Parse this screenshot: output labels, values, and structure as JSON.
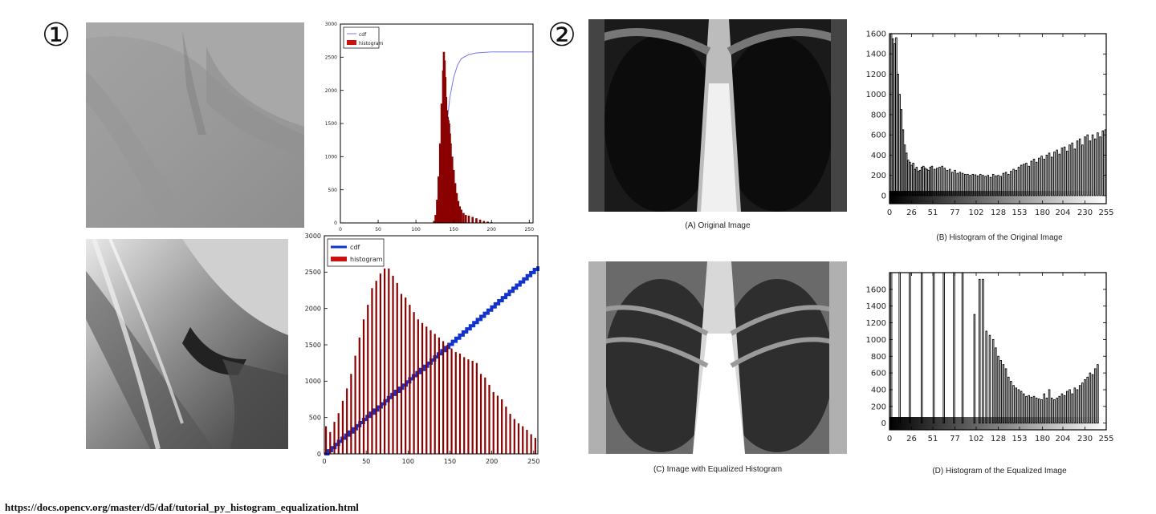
{
  "markers": {
    "first": "①",
    "second": "②"
  },
  "captions": {
    "a": "(A) Original Image",
    "b": "(B) Histogram of the Original Image",
    "c": "(C) Image with Equalized Histogram",
    "d": "(D) Histogram of the Equalized Image"
  },
  "source_url": "https://docs.opencv.org/master/d5/daf/tutorial_py_histogram_equalization.html",
  "chart_data": [
    {
      "id": "landscape-original-histogram",
      "type": "bar",
      "xlim": [
        0,
        255
      ],
      "ylim": [
        0,
        3000
      ],
      "yticks": [
        0,
        500,
        1000,
        1500,
        2000,
        2500,
        3000
      ],
      "xticks": [
        0,
        50,
        100,
        150,
        200,
        250
      ],
      "legend_position": "top-left",
      "grid": false,
      "series": [
        {
          "name": "cdf",
          "kind": "line",
          "color": "#7777ee",
          "x": [
            128,
            132,
            135,
            138,
            141,
            145,
            150,
            155,
            160,
            170,
            180,
            200,
            220,
            255
          ],
          "values": [
            0,
            200,
            600,
            1100,
            1500,
            1900,
            2200,
            2380,
            2480,
            2540,
            2565,
            2580,
            2580,
            2580
          ]
        },
        {
          "name": "histogram",
          "kind": "bar",
          "color": "#8b0000",
          "x": [
            124,
            126,
            128,
            130,
            132,
            134,
            136,
            137,
            138,
            139,
            140,
            141,
            142,
            143,
            144,
            145,
            146,
            148,
            150,
            152,
            154,
            156,
            158,
            160,
            163,
            166,
            170,
            175,
            180,
            185,
            190,
            195,
            200
          ],
          "values": [
            30,
            120,
            350,
            700,
            1200,
            1800,
            2300,
            2580,
            2450,
            2200,
            1900,
            1700,
            1600,
            1550,
            1500,
            1350,
            1200,
            1000,
            800,
            600,
            450,
            330,
            250,
            200,
            150,
            120,
            110,
            90,
            70,
            50,
            30,
            20,
            10
          ]
        }
      ]
    },
    {
      "id": "landscape-equalized-histogram",
      "type": "bar",
      "xlim": [
        0,
        255
      ],
      "ylim": [
        0,
        3000
      ],
      "yticks": [
        0,
        500,
        1000,
        1500,
        2000,
        2500,
        3000
      ],
      "xticks": [
        0,
        50,
        100,
        150,
        200,
        250
      ],
      "legend_position": "top-left",
      "grid": false,
      "series": [
        {
          "name": "cdf",
          "kind": "line",
          "color": "#1133cc",
          "x": [
            0,
            255
          ],
          "values": [
            0,
            2580
          ]
        },
        {
          "name": "histogram",
          "kind": "bar",
          "color": "#8b0000",
          "x": [
            2,
            7,
            12,
            17,
            22,
            27,
            32,
            37,
            42,
            47,
            52,
            57,
            62,
            67,
            72,
            77,
            82,
            87,
            92,
            97,
            102,
            107,
            112,
            117,
            122,
            127,
            132,
            137,
            142,
            147,
            152,
            157,
            162,
            167,
            172,
            177,
            182,
            187,
            192,
            197,
            202,
            207,
            212,
            217,
            222,
            227,
            232,
            237,
            242,
            247,
            252
          ],
          "values": [
            380,
            300,
            440,
            560,
            730,
            900,
            1100,
            1350,
            1600,
            1850,
            2050,
            2280,
            2380,
            2480,
            2550,
            2550,
            2450,
            2350,
            2200,
            2150,
            2050,
            1950,
            1850,
            1800,
            1750,
            1700,
            1650,
            1600,
            1550,
            1500,
            1450,
            1400,
            1380,
            1330,
            1300,
            1280,
            1250,
            1100,
            1050,
            950,
            850,
            800,
            750,
            650,
            550,
            480,
            420,
            380,
            330,
            270,
            220
          ]
        }
      ]
    },
    {
      "id": "xray-original-histogram",
      "type": "bar",
      "xlim": [
        0,
        255
      ],
      "ylim": [
        -80,
        1600
      ],
      "yticks": [
        0,
        200,
        400,
        600,
        800,
        1000,
        1200,
        1400,
        1600
      ],
      "xticks": [
        0,
        26,
        51,
        77,
        102,
        128,
        153,
        180,
        204,
        230,
        255
      ],
      "colorbar": true,
      "grid": false,
      "series": [
        {
          "name": "histogram",
          "kind": "bar",
          "color": "#000000",
          "x": [
            2,
            4,
            6,
            8,
            10,
            12,
            14,
            16,
            18,
            20,
            22,
            24,
            26,
            28,
            30,
            32,
            34,
            36,
            38,
            40,
            42,
            44,
            46,
            48,
            50,
            53,
            56,
            59,
            62,
            65,
            68,
            71,
            74,
            77,
            80,
            83,
            86,
            89,
            92,
            95,
            98,
            101,
            104,
            107,
            110,
            113,
            116,
            119,
            122,
            125,
            128,
            131,
            134,
            137,
            140,
            143,
            146,
            149,
            152,
            155,
            158,
            161,
            164,
            167,
            170,
            173,
            176,
            179,
            182,
            185,
            188,
            191,
            194,
            197,
            200,
            203,
            206,
            209,
            212,
            215,
            218,
            221,
            224,
            227,
            230,
            233,
            236,
            239,
            242,
            245,
            248,
            251,
            254
          ],
          "values": [
            1600,
            1550,
            1500,
            1560,
            1200,
            1000,
            850,
            650,
            500,
            420,
            350,
            330,
            300,
            320,
            260,
            280,
            240,
            250,
            280,
            290,
            270,
            260,
            250,
            280,
            290,
            260,
            270,
            280,
            290,
            270,
            250,
            260,
            230,
            250,
            220,
            230,
            220,
            210,
            210,
            200,
            210,
            205,
            195,
            210,
            200,
            190,
            200,
            180,
            210,
            195,
            200,
            190,
            220,
            230,
            210,
            240,
            260,
            250,
            280,
            300,
            310,
            320,
            290,
            340,
            360,
            330,
            370,
            390,
            360,
            400,
            420,
            380,
            430,
            450,
            410,
            470,
            480,
            440,
            500,
            520,
            460,
            540,
            560,
            500,
            580,
            600,
            540,
            600,
            560,
            620,
            580,
            640,
            650
          ]
        }
      ]
    },
    {
      "id": "xray-equalized-histogram",
      "type": "bar",
      "xlim": [
        0,
        255
      ],
      "ylim": [
        -80,
        1800
      ],
      "yticks": [
        0,
        200,
        400,
        600,
        800,
        1000,
        1200,
        1400,
        1600
      ],
      "xticks": [
        0,
        26,
        51,
        77,
        102,
        128,
        153,
        180,
        204,
        230,
        255
      ],
      "colorbar": true,
      "grid": false,
      "series": [
        {
          "name": "histogram",
          "kind": "bar",
          "color": "#000000",
          "x": [
            2,
            12,
            24,
            38,
            52,
            64,
            76,
            86,
            100,
            106,
            110,
            114,
            118,
            122,
            125,
            128,
            131,
            134,
            137,
            140,
            143,
            146,
            149,
            152,
            155,
            158,
            161,
            164,
            167,
            170,
            173,
            176,
            179,
            182,
            185,
            188,
            191,
            194,
            197,
            200,
            203,
            206,
            209,
            212,
            215,
            218,
            221,
            224,
            227,
            230,
            233,
            236,
            239,
            242,
            245
          ],
          "values": [
            1800,
            1800,
            1800,
            1800,
            1800,
            1800,
            1800,
            1800,
            1300,
            1720,
            1720,
            1100,
            1050,
            1000,
            900,
            800,
            750,
            700,
            650,
            550,
            500,
            450,
            420,
            400,
            380,
            350,
            320,
            330,
            310,
            320,
            300,
            290,
            280,
            350,
            300,
            400,
            300,
            280,
            300,
            320,
            350,
            330,
            380,
            400,
            350,
            420,
            400,
            450,
            480,
            520,
            550,
            600,
            580,
            650,
            700
          ]
        }
      ]
    }
  ]
}
